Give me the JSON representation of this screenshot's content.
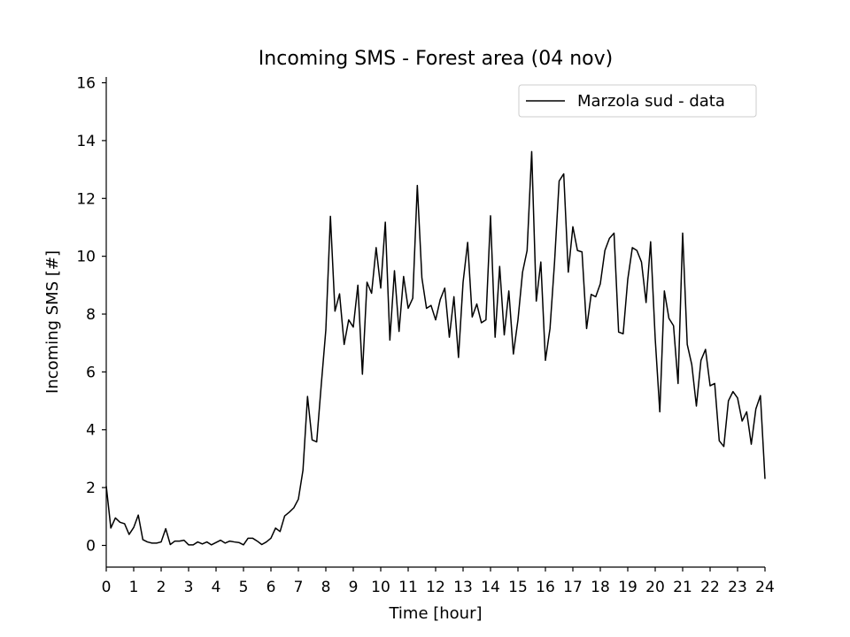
{
  "chart_data": {
    "type": "line",
    "title": "Incoming SMS - Forest area (04 nov)",
    "xlabel": "Time [hour]",
    "ylabel": "Incoming SMS [#]",
    "xlim": [
      0,
      24
    ],
    "ylim": [
      -0.75,
      16.2
    ],
    "xticks": [
      "0",
      "1",
      "2",
      "3",
      "4",
      "5",
      "6",
      "7",
      "8",
      "9",
      "10",
      "11",
      "12",
      "13",
      "14",
      "15",
      "16",
      "17",
      "18",
      "19",
      "20",
      "21",
      "22",
      "23",
      "24"
    ],
    "yticks": [
      "0",
      "2",
      "4",
      "6",
      "8",
      "10",
      "12",
      "14",
      "16"
    ],
    "grid": false,
    "legend": "top-right",
    "line_color": "#000000",
    "series": [
      {
        "name": "Marzola sud - data",
        "x": [
          0,
          0.167,
          0.333,
          0.5,
          0.667,
          0.833,
          1.0,
          1.167,
          1.333,
          1.5,
          1.667,
          1.833,
          2.0,
          2.167,
          2.333,
          2.5,
          2.667,
          2.833,
          3.0,
          3.167,
          3.333,
          3.5,
          3.667,
          3.833,
          4.0,
          4.167,
          4.333,
          4.5,
          4.667,
          4.833,
          5.0,
          5.167,
          5.333,
          5.5,
          5.667,
          5.833,
          6.0,
          6.167,
          6.333,
          6.5,
          6.667,
          6.833,
          7.0,
          7.167,
          7.333,
          7.5,
          7.667,
          7.833,
          8.0,
          8.167,
          8.333,
          8.5,
          8.667,
          8.833,
          9.0,
          9.167,
          9.333,
          9.5,
          9.667,
          9.833,
          10.0,
          10.167,
          10.333,
          10.5,
          10.667,
          10.833,
          11.0,
          11.167,
          11.333,
          11.5,
          11.667,
          11.833,
          12.0,
          12.167,
          12.333,
          12.5,
          12.667,
          12.833,
          13.0,
          13.167,
          13.333,
          13.5,
          13.667,
          13.833,
          14.0,
          14.167,
          14.333,
          14.5,
          14.667,
          14.833,
          15.0,
          15.167,
          15.333,
          15.5,
          15.667,
          15.833,
          16.0,
          16.167,
          16.333,
          16.5,
          16.667,
          16.833,
          17.0,
          17.167,
          17.333,
          17.5,
          17.667,
          17.833,
          18.0,
          18.167,
          18.333,
          18.5,
          18.667,
          18.833,
          19.0,
          19.167,
          19.333,
          19.5,
          19.667,
          19.833,
          20.0,
          20.167,
          20.333,
          20.5,
          20.667,
          20.833,
          21.0,
          21.167,
          21.333,
          21.5,
          21.667,
          21.833,
          22.0,
          22.167,
          22.333,
          22.5,
          22.667,
          22.833,
          23.0,
          23.167,
          23.333,
          23.5,
          23.667,
          23.833,
          24.0
        ],
        "values": [
          2.05,
          0.6,
          0.95,
          0.8,
          0.75,
          0.38,
          0.62,
          1.05,
          0.2,
          0.12,
          0.08,
          0.08,
          0.12,
          0.58,
          0.03,
          0.15,
          0.15,
          0.18,
          0.02,
          0.02,
          0.12,
          0.05,
          0.12,
          0.02,
          0.1,
          0.18,
          0.08,
          0.15,
          0.12,
          0.1,
          0.02,
          0.25,
          0.25,
          0.15,
          0.03,
          0.12,
          0.25,
          0.6,
          0.48,
          1.02,
          1.15,
          1.3,
          1.6,
          2.6,
          5.15,
          3.65,
          3.58,
          5.55,
          7.45,
          11.38,
          8.1,
          8.7,
          6.95,
          7.8,
          7.55,
          9.0,
          5.92,
          9.1,
          8.72,
          10.3,
          8.9,
          11.18,
          7.1,
          9.5,
          7.4,
          9.3,
          8.2,
          8.55,
          12.45,
          9.25,
          8.2,
          8.3,
          7.8,
          8.5,
          8.9,
          7.2,
          8.6,
          6.5,
          9.1,
          10.48,
          7.9,
          8.35,
          7.7,
          7.8,
          11.4,
          7.2,
          9.65,
          7.28,
          8.8,
          6.62,
          7.8,
          9.45,
          10.2,
          13.62,
          8.45,
          9.8,
          6.4,
          7.5,
          9.8,
          12.6,
          12.85,
          9.45,
          11.02,
          10.2,
          10.15,
          7.5,
          8.68,
          8.6,
          9.05,
          10.2,
          10.62,
          10.8,
          7.38,
          7.32,
          9.2,
          10.3,
          10.2,
          9.8,
          8.4,
          10.5,
          7.15,
          4.62,
          8.8,
          7.85,
          7.6,
          5.6,
          10.8,
          6.95,
          6.25,
          4.82,
          6.4,
          6.78,
          5.52,
          5.6,
          3.62,
          3.42,
          5.0,
          5.32,
          5.1,
          4.3,
          4.62,
          3.5,
          4.72,
          5.18,
          2.3
        ]
      }
    ]
  }
}
